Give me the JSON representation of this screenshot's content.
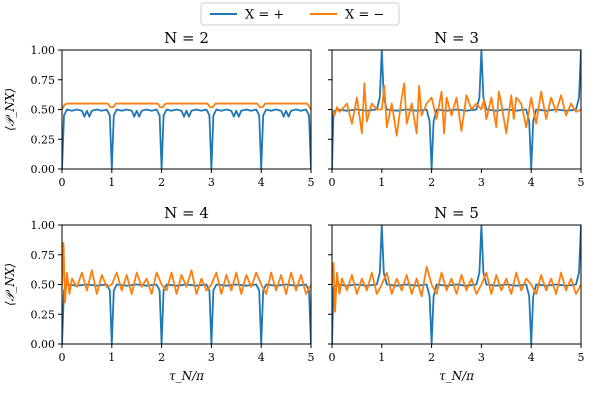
{
  "legend": {
    "entries": [
      {
        "label": "X = +",
        "color": "#1f77b4"
      },
      {
        "label": "X = −",
        "color": "#ff7f0e"
      }
    ]
  },
  "chart_data": [
    {
      "type": "line",
      "title": "N = 2",
      "xlabel": "",
      "ylabel": "⟨𝒫_NX⟩",
      "xlim": [
        0,
        5
      ],
      "ylim": [
        0,
        1
      ],
      "xticks": [
        "0",
        "1",
        "2",
        "3",
        "4",
        "5"
      ],
      "yticks": [
        "0.00",
        "0.25",
        "0.50",
        "0.75",
        "1.00"
      ],
      "series": [
        {
          "name": "X = +",
          "color": "#1f77b4",
          "x": [
            0,
            0.04,
            0.1,
            0.2,
            0.3,
            0.4,
            0.45,
            0.5,
            0.55,
            0.6,
            0.7,
            0.8,
            0.9,
            0.96,
            1.0,
            1.04,
            1.1,
            1.2,
            1.3,
            1.4,
            1.45,
            1.5,
            1.55,
            1.6,
            1.7,
            1.8,
            1.9,
            1.96,
            2.0,
            2.04,
            2.1,
            2.2,
            2.3,
            2.4,
            2.45,
            2.5,
            2.55,
            2.6,
            2.7,
            2.8,
            2.9,
            2.96,
            3.0,
            3.04,
            3.1,
            3.2,
            3.3,
            3.4,
            3.45,
            3.5,
            3.55,
            3.6,
            3.7,
            3.8,
            3.9,
            3.96,
            4.0,
            4.04,
            4.1,
            4.2,
            4.3,
            4.4,
            4.45,
            4.5,
            4.55,
            4.6,
            4.7,
            4.8,
            4.9,
            4.96,
            5.0
          ],
          "y": [
            0.0,
            0.45,
            0.5,
            0.49,
            0.5,
            0.49,
            0.44,
            0.49,
            0.44,
            0.49,
            0.5,
            0.49,
            0.5,
            0.45,
            0.0,
            0.45,
            0.5,
            0.49,
            0.5,
            0.49,
            0.44,
            0.49,
            0.44,
            0.49,
            0.5,
            0.49,
            0.5,
            0.45,
            0.0,
            0.45,
            0.5,
            0.49,
            0.5,
            0.49,
            0.44,
            0.49,
            0.44,
            0.49,
            0.5,
            0.49,
            0.5,
            0.45,
            0.0,
            0.45,
            0.5,
            0.49,
            0.5,
            0.49,
            0.44,
            0.49,
            0.44,
            0.49,
            0.5,
            0.49,
            0.5,
            0.45,
            0.0,
            0.45,
            0.5,
            0.49,
            0.5,
            0.49,
            0.44,
            0.49,
            0.44,
            0.49,
            0.5,
            0.49,
            0.5,
            0.45,
            0.0
          ]
        },
        {
          "name": "X = −",
          "color": "#ff7f0e",
          "x": [
            0,
            0.05,
            0.1,
            0.3,
            0.5,
            0.7,
            0.85,
            0.92,
            0.97,
            1.03,
            1.08,
            1.15,
            1.3,
            1.5,
            1.7,
            1.85,
            1.92,
            1.97,
            2.03,
            2.08,
            2.15,
            2.3,
            2.5,
            2.7,
            2.85,
            2.92,
            2.97,
            3.03,
            3.08,
            3.15,
            3.3,
            3.5,
            3.7,
            3.85,
            3.92,
            3.97,
            4.03,
            4.08,
            4.15,
            4.3,
            4.5,
            4.7,
            4.85,
            4.92,
            4.97,
            5.0
          ],
          "y": [
            0.5,
            0.54,
            0.55,
            0.55,
            0.55,
            0.55,
            0.55,
            0.55,
            0.52,
            0.52,
            0.55,
            0.55,
            0.55,
            0.55,
            0.55,
            0.55,
            0.55,
            0.52,
            0.52,
            0.55,
            0.55,
            0.55,
            0.55,
            0.55,
            0.55,
            0.55,
            0.52,
            0.52,
            0.55,
            0.55,
            0.55,
            0.55,
            0.55,
            0.55,
            0.55,
            0.52,
            0.52,
            0.55,
            0.55,
            0.55,
            0.55,
            0.55,
            0.55,
            0.55,
            0.52,
            0.5
          ]
        }
      ]
    },
    {
      "type": "line",
      "title": "N = 3",
      "xlabel": "",
      "ylabel": "",
      "xlim": [
        0,
        5
      ],
      "ylim": [
        0,
        1
      ],
      "xticks": [
        "0",
        "1",
        "2",
        "3",
        "4",
        "5"
      ],
      "yticks": [
        "",
        "",
        "",
        "",
        ""
      ],
      "series": [
        {
          "name": "X = +",
          "color": "#1f77b4",
          "x": [
            0,
            0.03,
            0.1,
            0.3,
            0.5,
            0.7,
            0.9,
            0.96,
            1.0,
            1.04,
            1.1,
            1.3,
            1.5,
            1.7,
            1.9,
            1.96,
            2.0,
            2.04,
            2.1,
            2.3,
            2.5,
            2.7,
            2.9,
            2.96,
            3.0,
            3.04,
            3.1,
            3.3,
            3.5,
            3.7,
            3.9,
            3.96,
            4.0,
            4.04,
            4.1,
            4.3,
            4.5,
            4.7,
            4.9,
            4.96,
            5.0
          ],
          "y": [
            0.0,
            0.48,
            0.5,
            0.49,
            0.5,
            0.49,
            0.5,
            0.6,
            1.0,
            0.6,
            0.5,
            0.49,
            0.5,
            0.49,
            0.5,
            0.4,
            0.0,
            0.4,
            0.5,
            0.49,
            0.5,
            0.49,
            0.5,
            0.6,
            1.0,
            0.6,
            0.5,
            0.49,
            0.5,
            0.49,
            0.5,
            0.4,
            0.0,
            0.4,
            0.5,
            0.49,
            0.5,
            0.49,
            0.5,
            0.6,
            1.0
          ]
        },
        {
          "name": "X = −",
          "color": "#ff7f0e",
          "x": [
            0,
            0.05,
            0.1,
            0.15,
            0.2,
            0.3,
            0.4,
            0.5,
            0.6,
            0.65,
            0.7,
            0.8,
            0.9,
            1.0,
            1.05,
            1.1,
            1.2,
            1.3,
            1.4,
            1.45,
            1.5,
            1.6,
            1.7,
            1.75,
            1.8,
            1.9,
            2.0,
            2.1,
            2.2,
            2.25,
            2.3,
            2.4,
            2.5,
            2.6,
            2.7,
            2.8,
            2.9,
            3.0,
            3.05,
            3.1,
            3.2,
            3.3,
            3.35,
            3.4,
            3.5,
            3.6,
            3.65,
            3.7,
            3.8,
            3.9,
            4.0,
            4.1,
            4.2,
            4.3,
            4.4,
            4.5,
            4.6,
            4.7,
            4.8,
            4.9,
            5.0
          ],
          "y": [
            0.5,
            0.45,
            0.52,
            0.48,
            0.5,
            0.55,
            0.38,
            0.6,
            0.3,
            0.72,
            0.4,
            0.55,
            0.5,
            0.5,
            0.7,
            0.35,
            0.55,
            0.28,
            0.6,
            0.72,
            0.38,
            0.55,
            0.3,
            0.7,
            0.45,
            0.55,
            0.6,
            0.42,
            0.65,
            0.3,
            0.6,
            0.45,
            0.6,
            0.32,
            0.62,
            0.5,
            0.55,
            0.5,
            0.58,
            0.42,
            0.6,
            0.35,
            0.65,
            0.55,
            0.3,
            0.62,
            0.42,
            0.6,
            0.55,
            0.35,
            0.6,
            0.38,
            0.65,
            0.42,
            0.6,
            0.48,
            0.62,
            0.45,
            0.55,
            0.48,
            0.5
          ]
        }
      ]
    },
    {
      "type": "line",
      "title": "N = 4",
      "xlabel": "τ_N/π",
      "ylabel": "⟨𝒫_NX⟩",
      "xlim": [
        0,
        5
      ],
      "ylim": [
        0,
        1
      ],
      "xticks": [
        "0",
        "1",
        "2",
        "3",
        "4",
        "5"
      ],
      "yticks": [
        "0.00",
        "0.25",
        "0.50",
        "0.75",
        "1.00"
      ],
      "series": [
        {
          "name": "X = +",
          "color": "#1f77b4",
          "x": [
            0,
            0.04,
            0.1,
            0.3,
            0.5,
            0.7,
            0.9,
            0.96,
            1.0,
            1.04,
            1.1,
            1.3,
            1.5,
            1.7,
            1.9,
            1.96,
            2.0,
            2.04,
            2.1,
            2.3,
            2.5,
            2.7,
            2.9,
            2.96,
            3.0,
            3.04,
            3.1,
            3.3,
            3.5,
            3.7,
            3.9,
            3.96,
            4.0,
            4.04,
            4.1,
            4.3,
            4.5,
            4.7,
            4.9,
            4.96,
            5.0
          ],
          "y": [
            0.0,
            0.45,
            0.5,
            0.49,
            0.5,
            0.49,
            0.5,
            0.45,
            0.0,
            0.45,
            0.5,
            0.49,
            0.5,
            0.49,
            0.5,
            0.45,
            0.0,
            0.45,
            0.5,
            0.49,
            0.5,
            0.49,
            0.5,
            0.45,
            0.0,
            0.45,
            0.5,
            0.49,
            0.5,
            0.49,
            0.5,
            0.45,
            0.0,
            0.45,
            0.5,
            0.49,
            0.5,
            0.49,
            0.5,
            0.45,
            0.0
          ]
        },
        {
          "name": "X = −",
          "color": "#ff7f0e",
          "x": [
            0,
            0.03,
            0.06,
            0.1,
            0.15,
            0.2,
            0.3,
            0.4,
            0.5,
            0.6,
            0.7,
            0.8,
            0.9,
            1.0,
            1.1,
            1.2,
            1.3,
            1.4,
            1.5,
            1.6,
            1.7,
            1.8,
            1.9,
            2.0,
            2.1,
            2.2,
            2.3,
            2.4,
            2.5,
            2.6,
            2.7,
            2.8,
            2.9,
            3.0,
            3.1,
            3.2,
            3.3,
            3.4,
            3.5,
            3.6,
            3.7,
            3.8,
            3.9,
            4.0,
            4.1,
            4.2,
            4.3,
            4.4,
            4.5,
            4.6,
            4.7,
            4.8,
            4.9,
            5.0
          ],
          "y": [
            0.5,
            0.85,
            0.35,
            0.6,
            0.42,
            0.55,
            0.48,
            0.6,
            0.45,
            0.62,
            0.42,
            0.58,
            0.48,
            0.5,
            0.6,
            0.45,
            0.58,
            0.42,
            0.6,
            0.48,
            0.55,
            0.42,
            0.6,
            0.5,
            0.45,
            0.6,
            0.42,
            0.58,
            0.48,
            0.62,
            0.42,
            0.55,
            0.45,
            0.5,
            0.6,
            0.42,
            0.58,
            0.45,
            0.6,
            0.42,
            0.58,
            0.48,
            0.6,
            0.5,
            0.42,
            0.6,
            0.45,
            0.58,
            0.42,
            0.6,
            0.45,
            0.58,
            0.42,
            0.5
          ]
        }
      ]
    },
    {
      "type": "line",
      "title": "N = 5",
      "xlabel": "τ_N/π",
      "ylabel": "",
      "xlim": [
        0,
        5
      ],
      "ylim": [
        0,
        1
      ],
      "xticks": [
        "0",
        "1",
        "2",
        "3",
        "4",
        "5"
      ],
      "yticks": [
        "",
        "",
        "",
        "",
        ""
      ],
      "series": [
        {
          "name": "X = +",
          "color": "#1f77b4",
          "x": [
            0,
            0.03,
            0.1,
            0.3,
            0.5,
            0.7,
            0.9,
            0.96,
            1.0,
            1.04,
            1.1,
            1.3,
            1.5,
            1.7,
            1.9,
            1.96,
            2.0,
            2.04,
            2.1,
            2.3,
            2.5,
            2.7,
            2.9,
            2.96,
            3.0,
            3.04,
            3.1,
            3.3,
            3.5,
            3.7,
            3.9,
            3.96,
            4.0,
            4.04,
            4.1,
            4.3,
            4.5,
            4.7,
            4.9,
            4.96,
            5.0
          ],
          "y": [
            0.0,
            0.48,
            0.5,
            0.49,
            0.5,
            0.49,
            0.5,
            0.6,
            1.0,
            0.6,
            0.5,
            0.49,
            0.5,
            0.49,
            0.5,
            0.4,
            0.0,
            0.4,
            0.5,
            0.49,
            0.5,
            0.49,
            0.5,
            0.6,
            1.0,
            0.6,
            0.5,
            0.49,
            0.5,
            0.49,
            0.5,
            0.4,
            0.0,
            0.4,
            0.5,
            0.49,
            0.5,
            0.49,
            0.5,
            0.6,
            1.0
          ]
        },
        {
          "name": "X = −",
          "color": "#ff7f0e",
          "x": [
            0,
            0.03,
            0.06,
            0.1,
            0.15,
            0.2,
            0.3,
            0.4,
            0.5,
            0.6,
            0.7,
            0.8,
            0.9,
            1.0,
            1.1,
            1.2,
            1.3,
            1.4,
            1.5,
            1.6,
            1.7,
            1.8,
            1.9,
            2.0,
            2.1,
            2.2,
            2.3,
            2.4,
            2.5,
            2.6,
            2.7,
            2.8,
            2.9,
            3.0,
            3.1,
            3.2,
            3.3,
            3.4,
            3.5,
            3.6,
            3.7,
            3.8,
            3.9,
            4.0,
            4.1,
            4.2,
            4.3,
            4.4,
            4.5,
            4.6,
            4.7,
            4.8,
            4.9,
            5.0
          ],
          "y": [
            0.5,
            0.68,
            0.27,
            0.6,
            0.42,
            0.55,
            0.45,
            0.58,
            0.42,
            0.55,
            0.45,
            0.6,
            0.42,
            0.5,
            0.6,
            0.42,
            0.55,
            0.45,
            0.58,
            0.42,
            0.55,
            0.4,
            0.65,
            0.5,
            0.42,
            0.6,
            0.45,
            0.55,
            0.42,
            0.58,
            0.45,
            0.55,
            0.42,
            0.5,
            0.6,
            0.42,
            0.58,
            0.45,
            0.55,
            0.42,
            0.6,
            0.45,
            0.55,
            0.5,
            0.42,
            0.58,
            0.45,
            0.55,
            0.42,
            0.6,
            0.45,
            0.55,
            0.42,
            0.5
          ]
        }
      ]
    }
  ]
}
